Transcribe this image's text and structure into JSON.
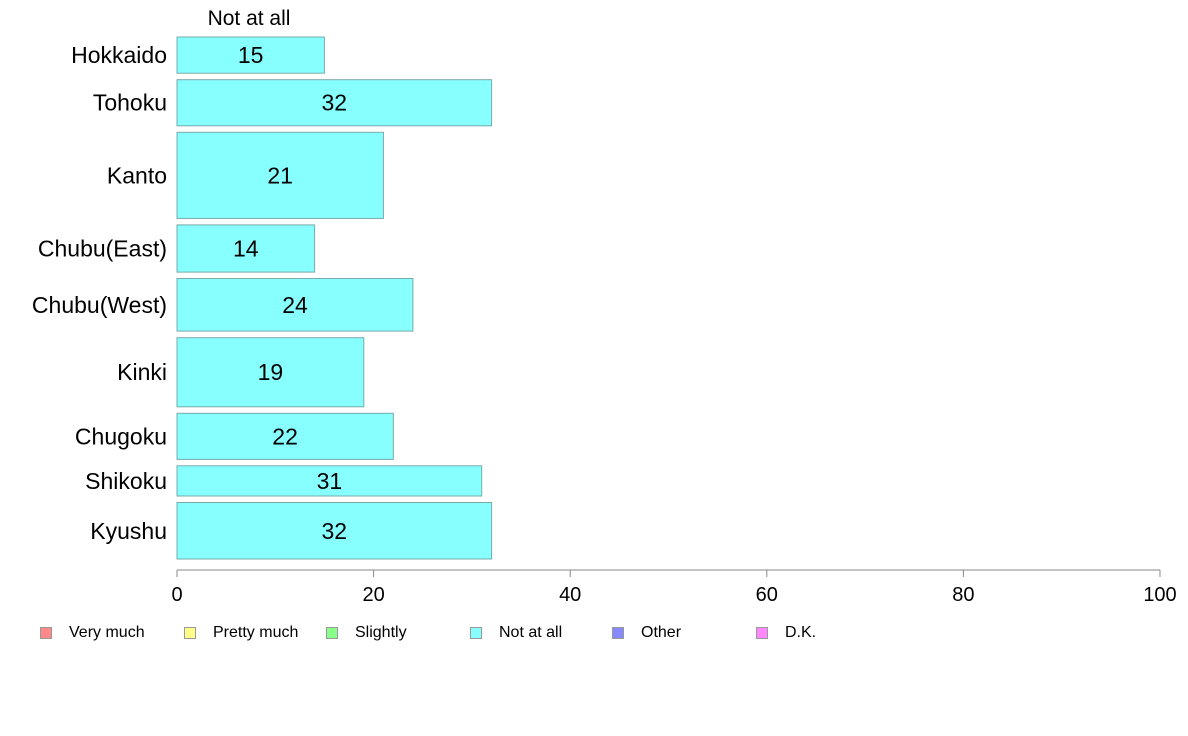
{
  "chart_data": {
    "type": "bar",
    "orientation": "horizontal",
    "series_label": "Not at all",
    "categories": [
      "Hokkaido",
      "Tohoku",
      "Kanto",
      "Chubu(East)",
      "Chubu(West)",
      "Kinki",
      "Chugoku",
      "Shikoku",
      "Kyushu"
    ],
    "values": [
      15,
      32,
      21,
      14,
      24,
      19,
      22,
      31,
      32
    ],
    "bar_weights": [
      0.66,
      0.84,
      1.57,
      0.86,
      0.96,
      1.26,
      0.84,
      0.55,
      1.03
    ],
    "xlim": [
      0,
      100
    ],
    "x_ticks": [
      0,
      20,
      40,
      60,
      80,
      100
    ],
    "grid": false,
    "bar_color": "#88ffff",
    "bar_border": "#77aaaa",
    "legend_position": "bottom-left",
    "legend": [
      {
        "label": "Very much",
        "color": "#ff8888"
      },
      {
        "label": "Pretty much",
        "color": "#ffff88"
      },
      {
        "label": "Slightly",
        "color": "#88ff88"
      },
      {
        "label": "Not at all",
        "color": "#88ffff"
      },
      {
        "label": "Other",
        "color": "#8888ff"
      },
      {
        "label": "D.K.",
        "color": "#ff88ff"
      }
    ]
  }
}
